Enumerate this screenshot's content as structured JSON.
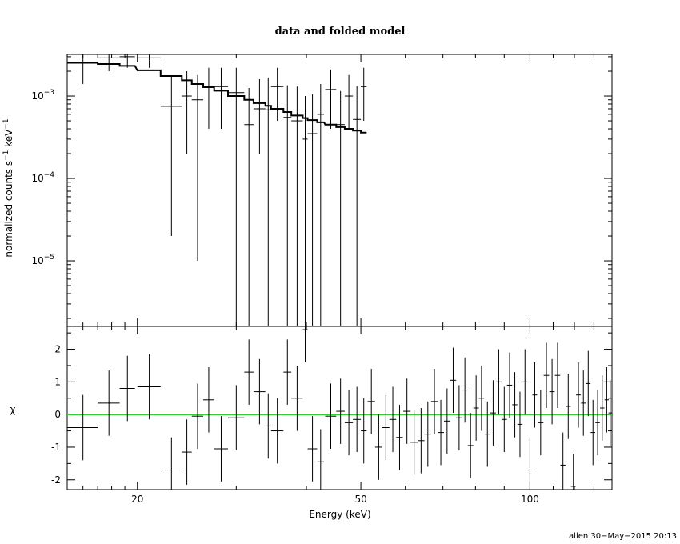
{
  "chart_data": [
    {
      "type": "scatter",
      "panel": "spectrum",
      "title": "data and folded model",
      "ylabel_parts": {
        "base": "normalized counts s",
        "exp1": "−1",
        "mid": " keV",
        "exp2": "−1"
      },
      "xscale": "log",
      "yscale": "log",
      "xlim": [
        15,
        140
      ],
      "ylim": [
        1.6e-06,
        0.0032
      ],
      "yticks": [
        {
          "value": 0.001,
          "base": "10",
          "exp": "−3"
        },
        {
          "value": 0.0001,
          "base": "10",
          "exp": "−4"
        },
        {
          "value": 1e-05,
          "base": "10",
          "exp": "−5"
        }
      ],
      "series": [
        {
          "role": "data",
          "x": [
            16.0,
            17.8,
            19.2,
            21.0,
            23.0,
            24.5,
            25.6,
            26.8,
            28.2,
            30.0,
            31.6,
            33.0,
            34.2,
            35.5,
            37.0,
            38.5,
            39.8,
            41.0,
            42.4,
            44.2,
            46.0,
            47.6,
            49.2,
            50.6
          ],
          "xerr": [
            1.0,
            0.8,
            0.6,
            1.0,
            1.0,
            0.5,
            0.6,
            0.6,
            0.8,
            1.0,
            0.6,
            0.8,
            0.4,
            0.9,
            0.6,
            0.9,
            0.4,
            0.8,
            0.6,
            1.0,
            0.8,
            0.8,
            0.8,
            0.6
          ],
          "y": [
            0.0025,
            0.0029,
            0.003,
            0.0029,
            0.00075,
            0.001,
            0.0009,
            0.0013,
            0.0013,
            0.0011,
            0.00045,
            0.0007,
            0.00068,
            0.0013,
            0.00055,
            0.0005,
            0.0003,
            0.00035,
            0.0006,
            0.0012,
            0.00045,
            0.001,
            0.00052,
            0.0013
          ],
          "yerr_low": [
            0.0011,
            0.0009,
            0.0008,
            0.0007,
            0.00073,
            0.0008,
            0.00089,
            0.0009,
            0.0009,
            0.0011,
            0.00045,
            0.0005,
            0.00068,
            0.0008,
            0.00055,
            0.0005,
            0.0003,
            0.00035,
            0.0006,
            0.0008,
            0.00045,
            0.0006,
            0.00052,
            0.0008
          ],
          "yerr_high": [
            0.0011,
            0.0009,
            0.0008,
            0.0007,
            0.001,
            0.001,
            0.0009,
            0.0009,
            0.0009,
            0.0011,
            0.0008,
            0.0009,
            0.001,
            0.0009,
            0.0008,
            0.0008,
            0.0007,
            0.0007,
            0.0008,
            0.0009,
            0.0007,
            0.0008,
            0.0008,
            0.0009
          ]
        },
        {
          "role": "folded-model",
          "x": [
            16.0,
            17.8,
            19.2,
            21.0,
            23.0,
            24.5,
            25.6,
            26.8,
            28.2,
            30.0,
            31.6,
            33.0,
            34.2,
            35.5,
            37.0,
            38.5,
            39.8,
            41.0,
            42.4,
            44.2,
            46.0,
            47.6,
            49.2,
            50.6
          ],
          "y": [
            0.00255,
            0.00245,
            0.00232,
            0.00205,
            0.00175,
            0.00155,
            0.0014,
            0.00128,
            0.00116,
            0.001,
            0.0009,
            0.00082,
            0.00076,
            0.0007,
            0.00064,
            0.00058,
            0.00054,
            0.00051,
            0.00048,
            0.00045,
            0.00042,
            0.0004,
            0.00038,
            0.00036
          ]
        }
      ]
    },
    {
      "type": "scatter",
      "panel": "residuals",
      "ylabel": "χ",
      "xlabel": "Energy (keV)",
      "xscale": "log",
      "xlim": [
        15,
        140
      ],
      "ylim": [
        -2.3,
        2.7
      ],
      "yticks": [
        -2,
        -1,
        0,
        1,
        2
      ],
      "xticks": [
        20,
        50,
        100
      ],
      "zero_line_color": "#33cc33",
      "series": [
        {
          "role": "residuals",
          "x": [
            16.0,
            17.8,
            19.2,
            21.0,
            23.0,
            24.5,
            25.6,
            26.8,
            28.2,
            30.0,
            31.6,
            33.0,
            34.2,
            35.5,
            37.0,
            38.5,
            39.8,
            41.0,
            42.4,
            44.2,
            46.0,
            47.6,
            49.2,
            50.6,
            52.2,
            53.8,
            55.4,
            57.0,
            58.6,
            60.4,
            62.2,
            64.0,
            65.8,
            67.6,
            69.4,
            71.2,
            73.0,
            74.8,
            76.6,
            78.4,
            80.2,
            82.0,
            84.0,
            86.0,
            88.0,
            90.0,
            92.0,
            94.0,
            96.0,
            98.0,
            100.0,
            102.0,
            104.5,
            107.0,
            109.5,
            112.0,
            114.5,
            117.0,
            119.5,
            122.0,
            124.5,
            127.0,
            129.5,
            132.0,
            134.5,
            137.0,
            139.0
          ],
          "xerr": [
            1.0,
            0.8,
            0.6,
            1.0,
            1.0,
            0.5,
            0.6,
            0.6,
            0.8,
            1.0,
            0.6,
            0.8,
            0.4,
            0.9,
            0.6,
            0.9,
            0.4,
            0.8,
            0.6,
            1.0,
            0.8,
            0.8,
            0.8,
            0.6,
            0.8,
            0.8,
            0.8,
            0.8,
            0.8,
            0.9,
            0.9,
            0.9,
            0.9,
            0.9,
            0.9,
            0.9,
            0.9,
            0.9,
            0.9,
            0.9,
            0.9,
            0.9,
            1.0,
            1.0,
            1.0,
            1.0,
            1.0,
            1.0,
            1.0,
            1.0,
            1.0,
            1.0,
            1.2,
            1.2,
            1.2,
            1.2,
            1.2,
            1.2,
            1.2,
            1.2,
            1.2,
            1.2,
            1.2,
            1.2,
            1.2,
            1.2,
            1.0
          ],
          "y": [
            -0.4,
            0.35,
            0.8,
            0.85,
            -1.7,
            -1.15,
            -0.05,
            0.45,
            -1.05,
            -0.1,
            1.3,
            0.7,
            -0.35,
            -0.5,
            1.3,
            0.5,
            2.6,
            -1.05,
            -1.45,
            -0.05,
            0.1,
            -0.25,
            -0.15,
            -0.5,
            0.4,
            -1.0,
            -0.4,
            -0.15,
            -0.7,
            0.1,
            -0.85,
            -0.8,
            -0.6,
            0.4,
            -0.55,
            -0.2,
            1.05,
            -0.1,
            0.75,
            -0.95,
            0.2,
            0.5,
            -0.6,
            0.05,
            1.0,
            -0.15,
            0.9,
            0.3,
            -0.3,
            1.0,
            -1.7,
            0.6,
            -0.25,
            1.2,
            0.7,
            1.2,
            -1.55,
            0.25,
            -2.2,
            0.6,
            0.35,
            0.95,
            -0.55,
            -0.25,
            0.2,
            0.45,
            0.05
          ],
          "yerr": [
            1.0,
            1.0,
            1.0,
            1.0,
            1.0,
            1.0,
            1.0,
            1.0,
            1.0,
            1.0,
            1.0,
            1.0,
            1.0,
            1.0,
            1.0,
            1.0,
            1.0,
            1.0,
            1.0,
            1.0,
            1.0,
            1.0,
            1.0,
            1.0,
            1.0,
            1.0,
            1.0,
            1.0,
            1.0,
            1.0,
            1.0,
            1.0,
            1.0,
            1.0,
            1.0,
            1.0,
            1.0,
            1.0,
            1.0,
            1.0,
            1.0,
            1.0,
            1.0,
            1.0,
            1.0,
            1.0,
            1.0,
            1.0,
            1.0,
            1.0,
            1.0,
            1.0,
            1.0,
            1.0,
            1.0,
            1.0,
            1.0,
            1.0,
            1.0,
            1.0,
            1.0,
            1.0,
            1.0,
            1.0,
            1.0,
            1.0,
            1.0
          ]
        }
      ]
    }
  ],
  "footer": "allen 30−May−2015 20:13"
}
